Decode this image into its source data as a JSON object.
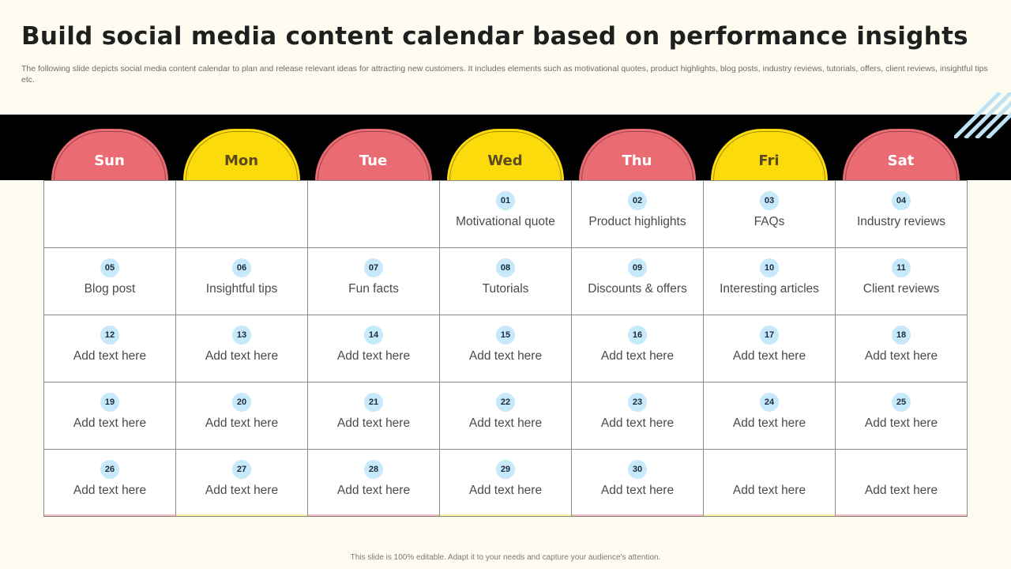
{
  "title": "Build social media content calendar based on performance insights",
  "subtitle": "The following slide depicts social media content calendar to plan and release relevant ideas for attracting new customers. It includes elements such as motivational quotes, product highlights, blog posts, industry reviews, tutorials, offers, client reviews, insightful tips etc.",
  "colors": {
    "red": "#eb6b73",
    "yellow": "#fbdb0b",
    "badge": "#c6e9fb",
    "band": "#000000"
  },
  "days": [
    {
      "label": "Sun",
      "color": "red"
    },
    {
      "label": "Mon",
      "color": "yellow"
    },
    {
      "label": "Tue",
      "color": "red"
    },
    {
      "label": "Wed",
      "color": "yellow"
    },
    {
      "label": "Thu",
      "color": "red"
    },
    {
      "label": "Fri",
      "color": "yellow"
    },
    {
      "label": "Sat",
      "color": "red"
    }
  ],
  "cells": [
    {
      "num": "",
      "text": ""
    },
    {
      "num": "",
      "text": ""
    },
    {
      "num": "",
      "text": ""
    },
    {
      "num": "01",
      "text": "Motivational quote"
    },
    {
      "num": "02",
      "text": "Product highlights"
    },
    {
      "num": "03",
      "text": "FAQs"
    },
    {
      "num": "04",
      "text": "Industry  reviews"
    },
    {
      "num": "05",
      "text": "Blog post"
    },
    {
      "num": "06",
      "text": "Insightful  tips"
    },
    {
      "num": "07",
      "text": "Fun facts"
    },
    {
      "num": "08",
      "text": "Tutorials"
    },
    {
      "num": "09",
      "text": "Discounts & offers"
    },
    {
      "num": "10",
      "text": "Interesting articles"
    },
    {
      "num": "11",
      "text": "Client reviews"
    },
    {
      "num": "12",
      "text": "Add text here"
    },
    {
      "num": "13",
      "text": "Add text here"
    },
    {
      "num": "14",
      "text": "Add text here"
    },
    {
      "num": "15",
      "text": "Add text here"
    },
    {
      "num": "16",
      "text": "Add text here"
    },
    {
      "num": "17",
      "text": "Add text here"
    },
    {
      "num": "18",
      "text": "Add text here"
    },
    {
      "num": "19",
      "text": "Add text here"
    },
    {
      "num": "20",
      "text": "Add text here"
    },
    {
      "num": "21",
      "text": "Add text here"
    },
    {
      "num": "22",
      "text": "Add text here"
    },
    {
      "num": "23",
      "text": "Add text here"
    },
    {
      "num": "24",
      "text": "Add text here"
    },
    {
      "num": "25",
      "text": "Add text here"
    },
    {
      "num": "26",
      "text": "Add text here"
    },
    {
      "num": "27",
      "text": "Add text here"
    },
    {
      "num": "28",
      "text": "Add text here"
    },
    {
      "num": "29",
      "text": "Add text here"
    },
    {
      "num": "30",
      "text": "Add text here"
    },
    {
      "num": "",
      "text": "Add text here"
    },
    {
      "num": "",
      "text": "Add text here"
    }
  ],
  "footer": "This slide is 100% editable.  Adapt it to your needs and capture your audience's attention."
}
